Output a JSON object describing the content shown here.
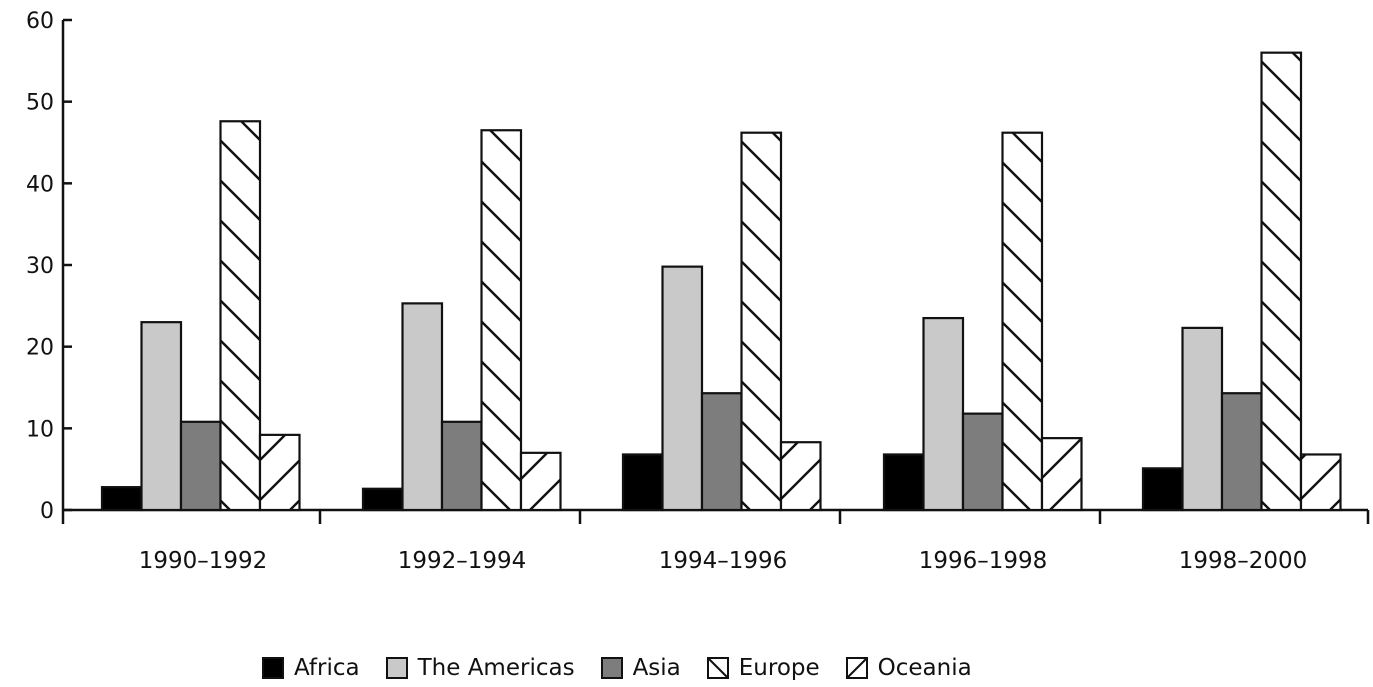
{
  "chart_data": {
    "type": "bar",
    "categories": [
      "1990–1992",
      "1992–1994",
      "1994–1996",
      "1996–1998",
      "1998–2000"
    ],
    "series": [
      {
        "name": "Africa",
        "values": [
          2.8,
          2.6,
          6.8,
          6.8,
          5.1
        ],
        "fill": "solid",
        "color": "#000000"
      },
      {
        "name": "The Americas",
        "values": [
          23.0,
          25.3,
          29.8,
          23.5,
          22.3
        ],
        "fill": "solid",
        "color": "#c9c9c9"
      },
      {
        "name": "Asia",
        "values": [
          10.8,
          10.8,
          14.3,
          11.8,
          14.3
        ],
        "fill": "solid",
        "color": "#7d7d7d"
      },
      {
        "name": "Europe",
        "values": [
          47.6,
          46.5,
          46.2,
          46.2,
          56.0
        ],
        "fill": "hatch-back",
        "color": "#ffffff"
      },
      {
        "name": "Oceania",
        "values": [
          9.2,
          7.0,
          8.3,
          8.8,
          6.8
        ],
        "fill": "hatch-forward",
        "color": "#ffffff"
      }
    ],
    "y_ticks": [
      "0",
      "10",
      "20",
      "30",
      "40",
      "50",
      "60"
    ],
    "ylim": [
      0,
      60
    ],
    "xlabel": "",
    "ylabel": "",
    "title": "",
    "grid": false,
    "legend_position": "bottom"
  }
}
